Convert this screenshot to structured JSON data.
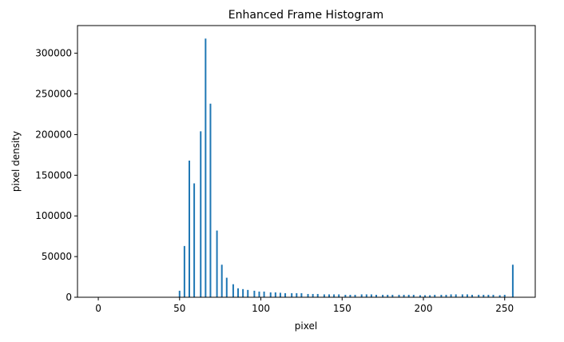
{
  "chart_data": {
    "type": "bar",
    "title": "Enhanced Frame Histogram",
    "x_label": "pixel",
    "y_label": "pixel density",
    "x": [
      50,
      53,
      56,
      59,
      63,
      66,
      69,
      73,
      76,
      79,
      83,
      86,
      89,
      92,
      96,
      99,
      102,
      106,
      109,
      112,
      115,
      119,
      122,
      125,
      129,
      132,
      135,
      139,
      142,
      145,
      148,
      152,
      155,
      158,
      162,
      165,
      168,
      171,
      175,
      178,
      181,
      185,
      188,
      191,
      194,
      198,
      201,
      204,
      207,
      211,
      214,
      217,
      220,
      224,
      227,
      230,
      234,
      237,
      240,
      243,
      247,
      250,
      255
    ],
    "values": [
      8000,
      63000,
      168000,
      140000,
      204000,
      318000,
      238000,
      82000,
      40000,
      24000,
      16000,
      11000,
      10000,
      9000,
      8000,
      7000,
      7000,
      6000,
      6000,
      5500,
      5000,
      5000,
      5000,
      5000,
      4000,
      4000,
      4000,
      3500,
      3500,
      3500,
      3500,
      3000,
      3000,
      3000,
      3500,
      3500,
      3500,
      3000,
      3000,
      3000,
      3000,
      3000,
      3000,
      3000,
      3000,
      2500,
      2500,
      2500,
      3000,
      3000,
      3000,
      3500,
      3500,
      3500,
      3500,
      3000,
      3000,
      3000,
      3000,
      3000,
      2500,
      3000,
      40000
    ],
    "color": "#1f77b4",
    "xlim": [
      -12.8,
      268.8
    ],
    "xticks": [
      0,
      50,
      100,
      150,
      200,
      250
    ],
    "ylim": [
      0,
      334000
    ],
    "yticks": [
      0,
      50000,
      100000,
      150000,
      200000,
      250000,
      300000
    ]
  }
}
